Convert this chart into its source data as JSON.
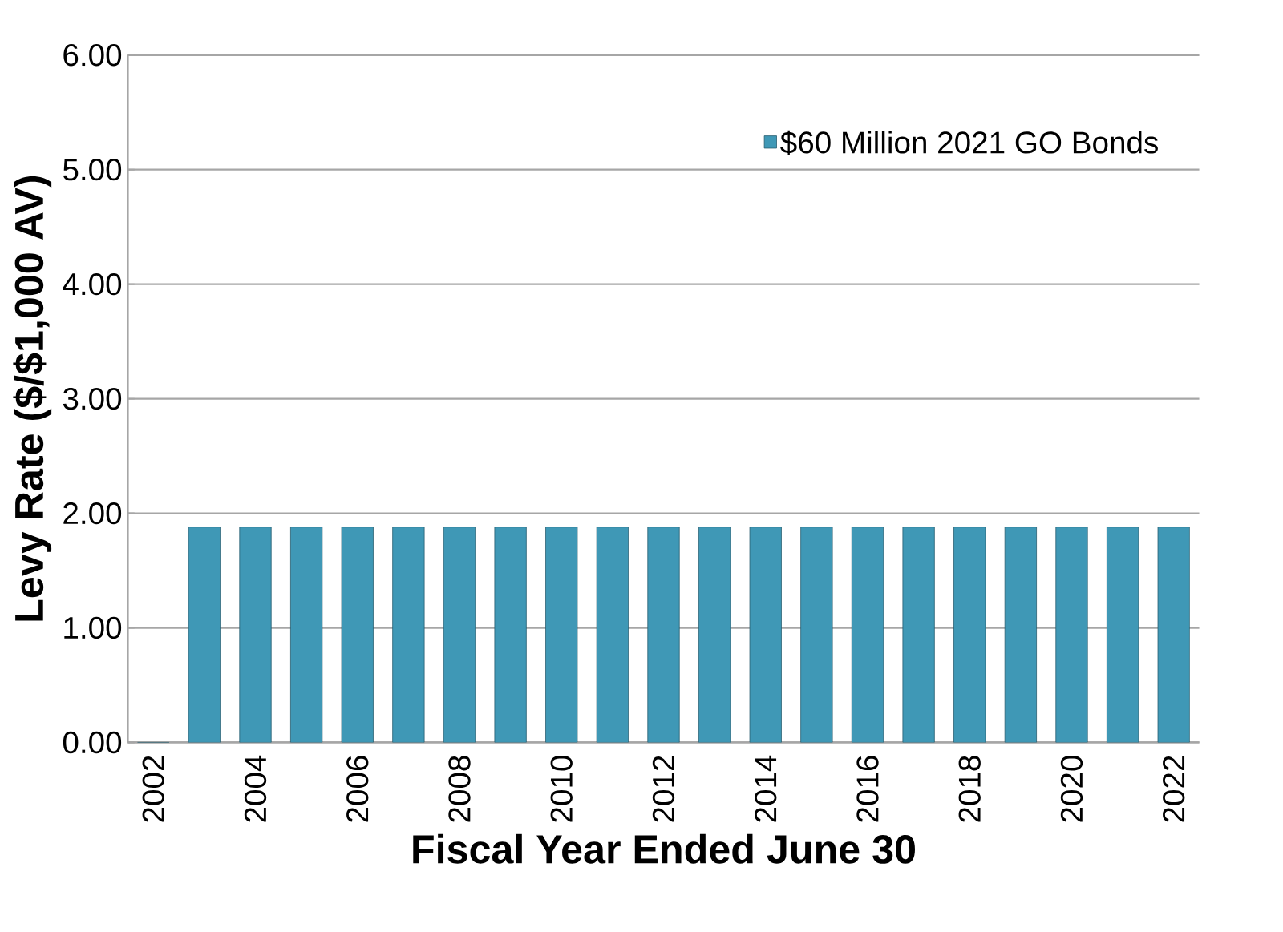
{
  "chart_data": {
    "type": "bar",
    "xlabel": "Fiscal Year Ended June 30",
    "ylabel": "Levy Rate ($/$1,000 AV)",
    "categories": [
      "2002",
      null,
      "2004",
      null,
      "2006",
      null,
      "2008",
      null,
      "2010",
      null,
      "2012",
      null,
      "2014",
      null,
      "2016",
      null,
      "2018",
      null,
      "2020",
      null,
      "2022"
    ],
    "series": [
      {
        "name": "$60 Million 2021 GO Bonds",
        "color": "#3f98b6",
        "values": [
          0,
          1.88,
          1.88,
          1.88,
          1.88,
          1.88,
          1.88,
          1.88,
          1.88,
          1.88,
          1.88,
          1.88,
          1.88,
          1.88,
          1.88,
          1.88,
          1.88,
          1.88,
          1.88,
          1.88,
          1.88
        ]
      }
    ],
    "ylim": [
      0,
      6
    ],
    "yticks": [
      {
        "value": 0,
        "label": "0.00"
      },
      {
        "value": 1,
        "label": "1.00"
      },
      {
        "value": 2,
        "label": "2.00"
      },
      {
        "value": 3,
        "label": "3.00"
      },
      {
        "value": 4,
        "label": "4.00"
      },
      {
        "value": 5,
        "label": "5.00"
      },
      {
        "value": 6,
        "label": "6.00"
      }
    ],
    "grid": "y",
    "legend": "top right"
  }
}
